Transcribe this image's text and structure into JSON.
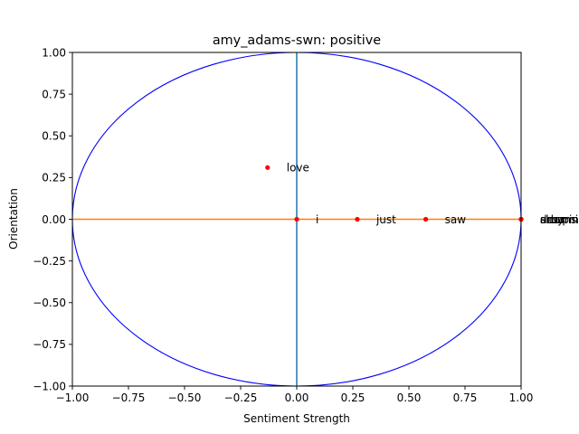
{
  "chart_data": {
    "type": "scatter",
    "title": "amy_adams-swn: positive",
    "xlabel": "Sentiment Strength",
    "ylabel": "Orientation",
    "xlim": [
      -1.0,
      1.0
    ],
    "ylim": [
      -1.0,
      1.0
    ],
    "x_ticks": [
      "−1.00",
      "−0.75",
      "−0.50",
      "−0.25",
      "0.00",
      "0.25",
      "0.50",
      "0.75",
      "1.00"
    ],
    "y_ticks": [
      "−1.00",
      "−0.75",
      "−0.50",
      "−0.25",
      "0.00",
      "0.25",
      "0.50",
      "0.75",
      "1.00"
    ],
    "grid": false,
    "unit_circle_color": "#0000ff",
    "vertical_line": {
      "x": 0.0,
      "color": "#1f77b4"
    },
    "horizontal_line": {
      "y": 0.0,
      "color": "#ff7f0e"
    },
    "point_color": "#ff0000",
    "points": [
      {
        "label": "love",
        "x": -0.13,
        "y": 0.31
      },
      {
        "label": "i",
        "x": 0.0,
        "y": 0.0
      },
      {
        "label": "just",
        "x": 0.27,
        "y": 0.0
      },
      {
        "label": "saw",
        "x": 0.575,
        "y": 0.0
      },
      {
        "label": "sleeping",
        "x": 1.0,
        "y": 0.0
      },
      {
        "label": "dreaming",
        "x": 1.0,
        "y": 0.0
      },
      {
        "label": "amy",
        "x": 1.0,
        "y": 0.0
      },
      {
        "label": "adams",
        "x": 1.0,
        "y": 0.0
      }
    ]
  }
}
